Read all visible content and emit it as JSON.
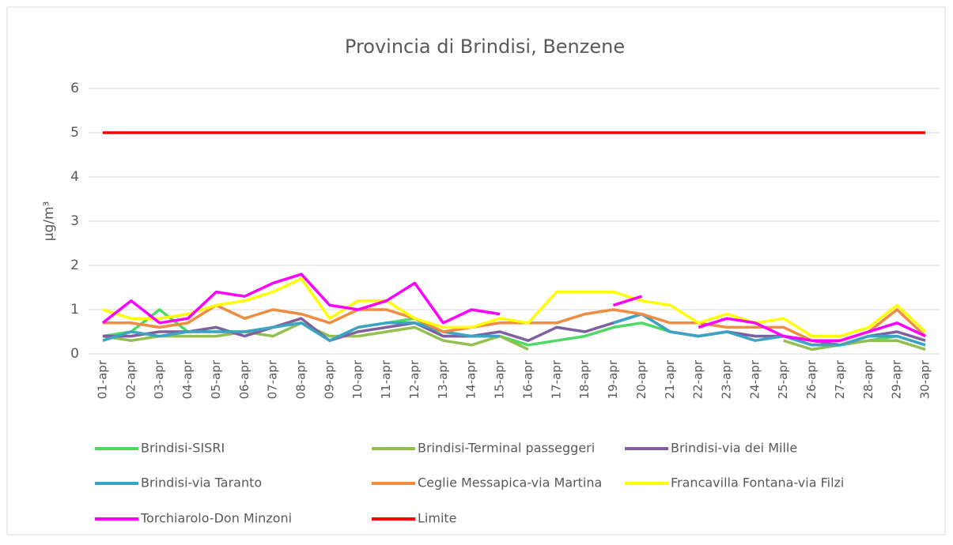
{
  "chart_data": {
    "type": "line",
    "title": "Provincia di Brindisi, Benzene",
    "y_label": "µg/m³",
    "categories": [
      "01-apr",
      "02-apr",
      "03-apr",
      "04-apr",
      "05-apr",
      "06-apr",
      "07-apr",
      "08-apr",
      "09-apr",
      "10-apr",
      "11-apr",
      "12-apr",
      "13-apr",
      "14-apr",
      "15-apr",
      "16-apr",
      "17-apr",
      "18-apr",
      "19-apr",
      "20-apr",
      "21-apr",
      "22-apr",
      "23-apr",
      "24-apr",
      "25-apr",
      "26-apr",
      "27-apr",
      "28-apr",
      "29-apr",
      "30-apr"
    ],
    "ylim": [
      0,
      6
    ],
    "yticks": [
      0,
      1,
      2,
      3,
      4,
      5,
      6
    ],
    "grid": true,
    "series": [
      {
        "name": "Brindisi-SISRI",
        "color": "#4cd964",
        "values": [
          0.4,
          0.5,
          1.0,
          0.5,
          0.5,
          0.5,
          0.6,
          0.7,
          0.3,
          0.6,
          0.7,
          0.8,
          0.4,
          0.4,
          0.4,
          0.2,
          0.3,
          0.4,
          0.6,
          0.7,
          0.5,
          0.4,
          0.5,
          0.4,
          0.4,
          0.2,
          0.2,
          0.3,
          0.4,
          0.2
        ]
      },
      {
        "name": "Brindisi-Terminal passeggeri",
        "color": "#92c050",
        "values": [
          0.4,
          0.3,
          0.4,
          0.4,
          0.4,
          0.5,
          0.4,
          0.7,
          0.4,
          0.4,
          0.5,
          0.6,
          0.3,
          0.2,
          0.4,
          0.1,
          null,
          null,
          null,
          null,
          null,
          null,
          null,
          null,
          0.3,
          0.1,
          0.2,
          0.3,
          0.3,
          0.1
        ]
      },
      {
        "name": "Brindisi-via dei Mille",
        "color": "#7f5fa0",
        "values": [
          0.4,
          0.4,
          0.5,
          0.5,
          0.6,
          0.4,
          0.6,
          0.8,
          0.3,
          0.5,
          0.6,
          0.7,
          0.4,
          0.4,
          0.5,
          0.3,
          0.6,
          0.5,
          0.7,
          0.9,
          0.5,
          0.4,
          0.5,
          0.4,
          0.4,
          0.3,
          0.2,
          0.4,
          0.5,
          0.3
        ]
      },
      {
        "name": "Brindisi-via Taranto",
        "color": "#3ba3c4",
        "values": [
          0.3,
          0.5,
          0.4,
          0.5,
          0.5,
          0.5,
          0.6,
          0.7,
          0.3,
          0.6,
          0.7,
          0.7,
          0.5,
          0.4,
          0.4,
          null,
          null,
          null,
          0.7,
          0.9,
          0.5,
          0.4,
          0.5,
          0.3,
          0.4,
          0.2,
          0.2,
          0.4,
          0.4,
          0.2
        ]
      },
      {
        "name": "Ceglie Messapica-via Martina",
        "color": "#f08c40",
        "values": [
          0.7,
          0.7,
          0.6,
          0.7,
          1.1,
          0.8,
          1.0,
          0.9,
          0.7,
          1.0,
          1.0,
          0.8,
          0.5,
          0.6,
          0.7,
          0.7,
          0.7,
          0.9,
          1.0,
          0.9,
          0.7,
          0.7,
          0.6,
          0.6,
          0.6,
          0.3,
          0.3,
          0.5,
          1.0,
          0.4
        ]
      },
      {
        "name": "Francavilla Fontana-via Filzi",
        "color": "#ffff00",
        "values": [
          1.0,
          0.8,
          0.8,
          0.9,
          1.1,
          1.2,
          1.4,
          1.7,
          0.8,
          1.2,
          1.2,
          0.8,
          0.6,
          0.6,
          0.8,
          0.7,
          1.4,
          1.4,
          1.4,
          1.2,
          1.1,
          0.7,
          0.9,
          0.7,
          0.8,
          0.4,
          0.4,
          0.6,
          1.1,
          0.5
        ]
      },
      {
        "name": "Torchiarolo-Don Minzoni",
        "color": "#ff00ff",
        "values": [
          0.7,
          1.2,
          0.7,
          0.8,
          1.4,
          1.3,
          1.6,
          1.8,
          1.1,
          1.0,
          1.2,
          1.6,
          0.7,
          1.0,
          0.9,
          null,
          null,
          null,
          1.1,
          1.3,
          null,
          0.6,
          0.8,
          0.7,
          0.4,
          0.3,
          0.3,
          0.5,
          0.7,
          0.4
        ]
      },
      {
        "name": "Limite",
        "color": "#ff0000",
        "values": [
          5,
          5,
          5,
          5,
          5,
          5,
          5,
          5,
          5,
          5,
          5,
          5,
          5,
          5,
          5,
          5,
          5,
          5,
          5,
          5,
          5,
          5,
          5,
          5,
          5,
          5,
          5,
          5,
          5,
          5
        ]
      }
    ]
  }
}
